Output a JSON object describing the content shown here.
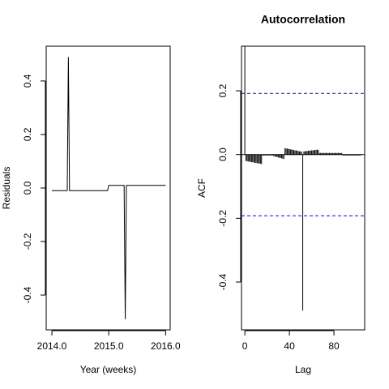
{
  "chart_data": [
    {
      "type": "line",
      "xlabel": "Year (weeks)",
      "ylabel": "Residuals",
      "color": "#000000",
      "x": [
        2014.0,
        2014.27,
        2014.29,
        2014.31,
        2014.98,
        2015.0,
        2015.27,
        2015.29,
        2015.31,
        2016.0
      ],
      "values": [
        -0.01,
        -0.01,
        0.49,
        -0.01,
        -0.01,
        0.01,
        0.01,
        -0.49,
        0.01,
        0.01
      ],
      "xlim": [
        2013.9,
        2016.08
      ],
      "ylim": [
        -0.53,
        0.53
      ],
      "xticks": [
        {
          "value": 2014,
          "label": "2014.0"
        },
        {
          "value": 2015,
          "label": "2015.0"
        },
        {
          "value": 2016,
          "label": "2016.0"
        }
      ],
      "yticks": [
        -0.4,
        -0.2,
        {
          "value": 0,
          "label": "0.0"
        },
        0.2,
        0.4
      ]
    },
    {
      "type": "acf",
      "title": "Autocorrelation",
      "xlabel": "Lag",
      "ylabel": "ACF",
      "color": "#000000",
      "x": [
        0,
        1,
        2,
        3,
        4,
        5,
        6,
        7,
        8,
        9,
        10,
        11,
        12,
        13,
        14,
        15,
        16,
        17,
        18,
        19,
        20,
        21,
        22,
        23,
        24,
        25,
        26,
        27,
        28,
        29,
        30,
        31,
        32,
        33,
        34,
        35,
        36,
        37,
        38,
        39,
        40,
        41,
        42,
        43,
        44,
        45,
        46,
        47,
        48,
        49,
        50,
        51,
        52,
        53,
        54,
        55,
        56,
        57,
        58,
        59,
        60,
        61,
        62,
        63,
        64,
        65,
        66,
        67,
        68,
        69,
        70,
        71,
        72,
        73,
        74,
        75,
        76,
        77,
        78,
        79,
        80,
        81,
        82,
        83,
        84,
        85,
        86,
        87,
        88,
        89,
        90,
        91,
        92,
        93,
        94,
        95,
        96,
        97,
        98,
        99,
        100,
        101,
        102,
        103,
        104
      ],
      "values": [
        1,
        -0.02,
        -0.021,
        -0.022,
        -0.022,
        -0.023,
        -0.024,
        -0.024,
        -0.025,
        -0.026,
        -0.026,
        -0.027,
        -0.028,
        -0.028,
        -0.029,
        -0.03,
        -0.003,
        -0.003,
        -0.003,
        -0.003,
        -0.003,
        -0.003,
        -0.003,
        -0.003,
        -0.003,
        -0.003,
        -0.005,
        -0.006,
        -0.007,
        -0.008,
        -0.009,
        -0.01,
        -0.011,
        -0.012,
        -0.013,
        -0.014,
        0.02,
        0.019,
        0.019,
        0.018,
        0.017,
        0.016,
        0.016,
        0.015,
        0.014,
        0.013,
        0.013,
        0.012,
        0.011,
        0.01,
        0.01,
        0.009,
        -0.49,
        0.01,
        0.01,
        0.011,
        0.011,
        0.012,
        0.012,
        0.013,
        0.013,
        0.013,
        0.014,
        0.014,
        0.015,
        0.015,
        0.015,
        0.005,
        0.005,
        0.005,
        0.005,
        0.005,
        0.005,
        0.005,
        0.005,
        0.005,
        0.005,
        0.005,
        0.005,
        0.005,
        0.005,
        0.005,
        0.005,
        0.005,
        0.005,
        0.005,
        0.005,
        0.005,
        -0.003,
        -0.003,
        -0.003,
        -0.003,
        -0.003,
        -0.003,
        -0.003,
        -0.003,
        -0.003,
        -0.003,
        -0.003,
        -0.003,
        -0.003,
        -0.003,
        -0.003,
        -0.003,
        -0.003
      ],
      "ci_lines": [
        0.192,
        -0.192
      ],
      "ci_color": "#0000ff",
      "xlim": [
        -3,
        107.6
      ],
      "ylim": [
        -0.55,
        0.34
      ],
      "xticks": [
        0,
        40,
        80
      ],
      "yticks": [
        -0.4,
        -0.2,
        {
          "value": 0,
          "label": "0.0"
        },
        0.2
      ]
    }
  ]
}
